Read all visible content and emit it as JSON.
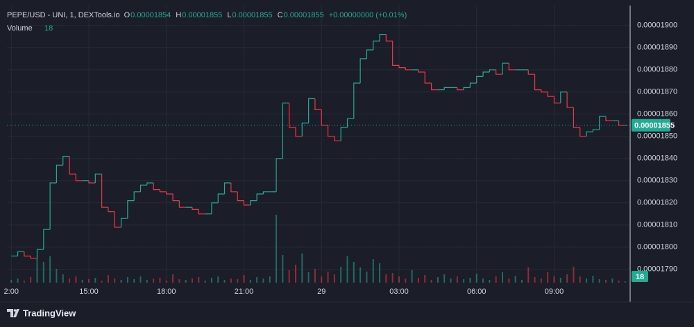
{
  "chart_data": {
    "type": "line",
    "title": "PEPE/USD - UNI, 1, DEXTools.io",
    "ohlc": [
      {
        "label": "O",
        "value": 1.854e-05
      },
      {
        "label": "H",
        "value": 1.855e-05
      },
      {
        "label": "L",
        "value": 1.855e-05
      },
      {
        "label": "C",
        "value": 1.855e-05
      }
    ],
    "change": "+0.00000000 (+0.01%)",
    "volume_label": "Volume",
    "brand": "TradingView",
    "up_color": "#22ab94",
    "down_color": "#f23645",
    "grid": true,
    "categories": [
      "2:00",
      null,
      null,
      null,
      null,
      null,
      null,
      null,
      null,
      null,
      null,
      null,
      "15:00",
      null,
      null,
      null,
      null,
      null,
      null,
      null,
      null,
      null,
      null,
      null,
      "18:00",
      null,
      null,
      null,
      null,
      null,
      null,
      null,
      null,
      null,
      null,
      null,
      "21:00",
      null,
      null,
      null,
      null,
      null,
      null,
      null,
      null,
      null,
      null,
      null,
      "29",
      null,
      null,
      null,
      null,
      null,
      null,
      null,
      null,
      null,
      null,
      null,
      "03:00",
      null,
      null,
      null,
      null,
      null,
      null,
      null,
      null,
      null,
      null,
      null,
      "06:00",
      null,
      null,
      null,
      null,
      null,
      null,
      null,
      null,
      null,
      null,
      null,
      "09:00",
      null,
      null,
      null,
      null,
      null,
      null,
      null,
      null,
      null,
      null,
      null
    ],
    "series": [
      {
        "name": "PEPE/USD",
        "values": [
          1.796e-05,
          1.798e-05,
          1.796e-05,
          1.795e-05,
          1.799e-05,
          1.808e-05,
          1.829e-05,
          1.837e-05,
          1.841e-05,
          1.833e-05,
          1.83e-05,
          1.83e-05,
          1.829e-05,
          1.833e-05,
          1.818e-05,
          1.816e-05,
          1.809e-05,
          1.813e-05,
          1.821e-05,
          1.825e-05,
          1.828e-05,
          1.829e-05,
          1.826e-05,
          1.825e-05,
          1.824e-05,
          1.821e-05,
          1.818e-05,
          1.818e-05,
          1.817e-05,
          1.815e-05,
          1.815e-05,
          1.82e-05,
          1.824e-05,
          1.829e-05,
          1.825e-05,
          1.821e-05,
          1.819e-05,
          1.821e-05,
          1.824e-05,
          1.825e-05,
          1.825e-05,
          1.84e-05,
          1.865e-05,
          1.854e-05,
          1.85e-05,
          1.856e-05,
          1.867e-05,
          1.862e-05,
          1.855e-05,
          1.85e-05,
          1.848e-05,
          1.854e-05,
          1.858e-05,
          1.874e-05,
          1.885e-05,
          1.889e-05,
          1.893e-05,
          1.896e-05,
          1.893e-05,
          1.882e-05,
          1.881e-05,
          1.88e-05,
          1.88e-05,
          1.879e-05,
          1.874e-05,
          1.871e-05,
          1.871e-05,
          1.872e-05,
          1.872e-05,
          1.871e-05,
          1.872e-05,
          1.874e-05,
          1.877e-05,
          1.879e-05,
          1.88e-05,
          1.878e-05,
          1.883e-05,
          1.88e-05,
          1.88e-05,
          1.88e-05,
          1.878e-05,
          1.871e-05,
          1.87e-05,
          1.868e-05,
          1.865e-05,
          1.87e-05,
          1.863e-05,
          1.854e-05,
          1.85e-05,
          1.852e-05,
          1.853e-05,
          1.859e-05,
          1.857e-05,
          1.857e-05,
          1.855e-05,
          1.855e-05
        ]
      },
      {
        "name": "Volume",
        "axis": "y2",
        "values": [
          40,
          60,
          30,
          80,
          350,
          300,
          380,
          200,
          120,
          60,
          90,
          40,
          50,
          70,
          30,
          110,
          60,
          40,
          80,
          50,
          90,
          40,
          60,
          70,
          30,
          120,
          50,
          40,
          60,
          80,
          30,
          70,
          90,
          40,
          60,
          50,
          110,
          40,
          80,
          60,
          90,
          980,
          400,
          180,
          260,
          420,
          150,
          200,
          90,
          160,
          120,
          230,
          380,
          300,
          220,
          160,
          340,
          280,
          120,
          140,
          90,
          60,
          180,
          70,
          110,
          40,
          80,
          120,
          60,
          90,
          50,
          70,
          130,
          60,
          40,
          90,
          150,
          60,
          100,
          40,
          220,
          80,
          60,
          150,
          90,
          70,
          120,
          230,
          90,
          60,
          100,
          50,
          40,
          60,
          30,
          18
        ]
      }
    ],
    "ylim": [
      1.784e-05,
      1.909e-05
    ],
    "yticks": [
      {
        "value": 1.79e-05,
        "label": "0.00001790"
      },
      {
        "value": 1.8e-05,
        "label": "0.00001800"
      },
      {
        "value": 1.81e-05,
        "label": "0.00001810"
      },
      {
        "value": 1.82e-05,
        "label": "0.00001820"
      },
      {
        "value": 1.83e-05,
        "label": "0.00001830"
      },
      {
        "value": 1.84e-05,
        "label": "0.00001840"
      },
      {
        "value": 1.85e-05,
        "label": "0.00001850"
      },
      {
        "value": 1.86e-05,
        "label": "0.00001860"
      },
      {
        "value": 1.87e-05,
        "label": "0.00001870"
      },
      {
        "value": 1.88e-05,
        "label": "0.00001880"
      },
      {
        "value": 1.89e-05,
        "label": "0.00001890"
      },
      {
        "value": 1.9e-05,
        "label": "0.00001900"
      }
    ],
    "y2lim": [
      0,
      4000
    ]
  }
}
